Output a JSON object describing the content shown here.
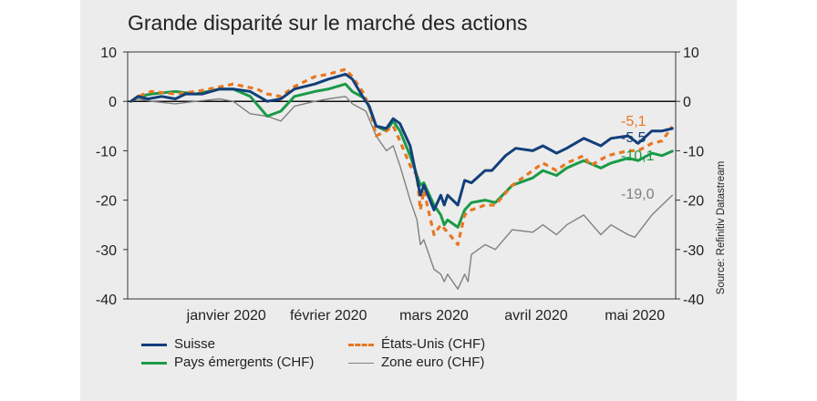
{
  "chart_data": {
    "type": "line",
    "title": "Grande disparité sur le marché des actions",
    "source": "Source: Refinitiv Datastream",
    "ylim": [
      -40,
      10
    ],
    "yticks": [
      10,
      0,
      -10,
      -20,
      -30,
      -40
    ],
    "x_domain": [
      "2019-12-17",
      "2020-05-26"
    ],
    "x_tick_labels": [
      "janvier 2020",
      "février 2020",
      "mars 2020",
      "avril 2020",
      "mai 2020"
    ],
    "x_tick_dates": [
      "2020-01-15",
      "2020-02-14",
      "2020-03-16",
      "2020-04-15",
      "2020-05-14"
    ],
    "series": [
      {
        "name": "Suisse",
        "color": "#123f7a",
        "style": "solid",
        "end_label": "-5,5",
        "points": [
          [
            "2019-12-18",
            0
          ],
          [
            "2019-12-20",
            1
          ],
          [
            "2019-12-23",
            0.5
          ],
          [
            "2019-12-27",
            1
          ],
          [
            "2019-12-31",
            0.5
          ],
          [
            "2020-01-03",
            1.5
          ],
          [
            "2020-01-08",
            1.5
          ],
          [
            "2020-01-13",
            2.5
          ],
          [
            "2020-01-17",
            2.5
          ],
          [
            "2020-01-22",
            2
          ],
          [
            "2020-01-27",
            0
          ],
          [
            "2020-01-31",
            0.5
          ],
          [
            "2020-02-04",
            2.5
          ],
          [
            "2020-02-10",
            3.5
          ],
          [
            "2020-02-14",
            4.5
          ],
          [
            "2020-02-19",
            5.5
          ],
          [
            "2020-02-21",
            4.5
          ],
          [
            "2020-02-24",
            1
          ],
          [
            "2020-02-26",
            -1
          ],
          [
            "2020-02-28",
            -5
          ],
          [
            "2020-03-02",
            -5.5
          ],
          [
            "2020-03-04",
            -3.5
          ],
          [
            "2020-03-06",
            -4.5
          ],
          [
            "2020-03-09",
            -9
          ],
          [
            "2020-03-12",
            -19
          ],
          [
            "2020-03-13",
            -17
          ],
          [
            "2020-03-16",
            -22
          ],
          [
            "2020-03-18",
            -19
          ],
          [
            "2020-03-19",
            -21
          ],
          [
            "2020-03-20",
            -19
          ],
          [
            "2020-03-23",
            -21
          ],
          [
            "2020-03-25",
            -16
          ],
          [
            "2020-03-27",
            -16.5
          ],
          [
            "2020-03-31",
            -14
          ],
          [
            "2020-04-02",
            -14
          ],
          [
            "2020-04-06",
            -11
          ],
          [
            "2020-04-09",
            -9.5
          ],
          [
            "2020-04-14",
            -10
          ],
          [
            "2020-04-17",
            -9
          ],
          [
            "2020-04-21",
            -10.5
          ],
          [
            "2020-04-24",
            -9.5
          ],
          [
            "2020-04-29",
            -7.5
          ],
          [
            "2020-05-04",
            -9
          ],
          [
            "2020-05-07",
            -7.5
          ],
          [
            "2020-05-12",
            -7
          ],
          [
            "2020-05-15",
            -8.5
          ],
          [
            "2020-05-19",
            -6
          ],
          [
            "2020-05-22",
            -6
          ],
          [
            "2020-05-25",
            -5.5
          ]
        ]
      },
      {
        "name": "États-Unis (CHF)",
        "color": "#e87722",
        "style": "dashed",
        "end_label": "-5,1",
        "points": [
          [
            "2019-12-18",
            0
          ],
          [
            "2019-12-20",
            1
          ],
          [
            "2019-12-24",
            2
          ],
          [
            "2019-12-31",
            1.5
          ],
          [
            "2020-01-06",
            2
          ],
          [
            "2020-01-10",
            2.5
          ],
          [
            "2020-01-17",
            3.5
          ],
          [
            "2020-01-24",
            2.5
          ],
          [
            "2020-01-27",
            1.5
          ],
          [
            "2020-01-31",
            1
          ],
          [
            "2020-02-04",
            3
          ],
          [
            "2020-02-10",
            5
          ],
          [
            "2020-02-14",
            5.5
          ],
          [
            "2020-02-19",
            6.5
          ],
          [
            "2020-02-21",
            5
          ],
          [
            "2020-02-24",
            2
          ],
          [
            "2020-02-26",
            -1
          ],
          [
            "2020-02-28",
            -7
          ],
          [
            "2020-03-02",
            -6
          ],
          [
            "2020-03-04",
            -5
          ],
          [
            "2020-03-06",
            -8
          ],
          [
            "2020-03-09",
            -13
          ],
          [
            "2020-03-11",
            -15
          ],
          [
            "2020-03-12",
            -22
          ],
          [
            "2020-03-13",
            -18
          ],
          [
            "2020-03-16",
            -27
          ],
          [
            "2020-03-18",
            -25
          ],
          [
            "2020-03-20",
            -26.5
          ],
          [
            "2020-03-23",
            -29
          ],
          [
            "2020-03-25",
            -23
          ],
          [
            "2020-03-27",
            -22
          ],
          [
            "2020-03-31",
            -21
          ],
          [
            "2020-04-03",
            -21
          ],
          [
            "2020-04-08",
            -17
          ],
          [
            "2020-04-14",
            -14
          ],
          [
            "2020-04-17",
            -12.5
          ],
          [
            "2020-04-21",
            -14
          ],
          [
            "2020-04-24",
            -12.5
          ],
          [
            "2020-04-29",
            -11
          ],
          [
            "2020-05-01",
            -13
          ],
          [
            "2020-05-06",
            -11
          ],
          [
            "2020-05-12",
            -10
          ],
          [
            "2020-05-15",
            -10
          ],
          [
            "2020-05-19",
            -8.5
          ],
          [
            "2020-05-22",
            -8
          ],
          [
            "2020-05-25",
            -5.1
          ]
        ]
      },
      {
        "name": "Pays émergents (CHF)",
        "color": "#1a9a47",
        "style": "solid",
        "end_label": "-10,1",
        "points": [
          [
            "2019-12-18",
            0
          ],
          [
            "2019-12-20",
            1
          ],
          [
            "2019-12-24",
            1.5
          ],
          [
            "2019-12-31",
            2
          ],
          [
            "2020-01-06",
            1.5
          ],
          [
            "2020-01-13",
            2.5
          ],
          [
            "2020-01-17",
            2.5
          ],
          [
            "2020-01-22",
            1
          ],
          [
            "2020-01-27",
            -3
          ],
          [
            "2020-01-31",
            -2
          ],
          [
            "2020-02-04",
            1
          ],
          [
            "2020-02-10",
            2
          ],
          [
            "2020-02-14",
            2.5
          ],
          [
            "2020-02-19",
            3.5
          ],
          [
            "2020-02-21",
            2
          ],
          [
            "2020-02-25",
            0.5
          ],
          [
            "2020-02-28",
            -5
          ],
          [
            "2020-03-02",
            -6
          ],
          [
            "2020-03-04",
            -4
          ],
          [
            "2020-03-06",
            -6
          ],
          [
            "2020-03-09",
            -11
          ],
          [
            "2020-03-12",
            -17
          ],
          [
            "2020-03-13",
            -16.5
          ],
          [
            "2020-03-16",
            -21
          ],
          [
            "2020-03-18",
            -23
          ],
          [
            "2020-03-19",
            -25
          ],
          [
            "2020-03-20",
            -24
          ],
          [
            "2020-03-23",
            -25.5
          ],
          [
            "2020-03-25",
            -22
          ],
          [
            "2020-03-27",
            -20.5
          ],
          [
            "2020-03-31",
            -20
          ],
          [
            "2020-04-03",
            -20.5
          ],
          [
            "2020-04-08",
            -17
          ],
          [
            "2020-04-14",
            -15.5
          ],
          [
            "2020-04-17",
            -14
          ],
          [
            "2020-04-21",
            -15
          ],
          [
            "2020-04-24",
            -13.5
          ],
          [
            "2020-04-29",
            -12
          ],
          [
            "2020-05-04",
            -13.5
          ],
          [
            "2020-05-07",
            -12.5
          ],
          [
            "2020-05-12",
            -11.5
          ],
          [
            "2020-05-15",
            -12
          ],
          [
            "2020-05-19",
            -10.5
          ],
          [
            "2020-05-22",
            -11
          ],
          [
            "2020-05-25",
            -10.1
          ]
        ]
      },
      {
        "name": "Zone euro (CHF)",
        "color": "#808080",
        "style": "solid",
        "end_label": "-19,0",
        "points": [
          [
            "2019-12-18",
            0
          ],
          [
            "2019-12-20",
            0.5
          ],
          [
            "2019-12-24",
            0
          ],
          [
            "2019-12-31",
            -0.5
          ],
          [
            "2020-01-06",
            0
          ],
          [
            "2020-01-13",
            0.5
          ],
          [
            "2020-01-17",
            0
          ],
          [
            "2020-01-22",
            -2.5
          ],
          [
            "2020-01-27",
            -3
          ],
          [
            "2020-01-31",
            -4
          ],
          [
            "2020-02-04",
            -1
          ],
          [
            "2020-02-10",
            0
          ],
          [
            "2020-02-14",
            0.5
          ],
          [
            "2020-02-19",
            1
          ],
          [
            "2020-02-21",
            -0.5
          ],
          [
            "2020-02-25",
            -2
          ],
          [
            "2020-02-28",
            -7
          ],
          [
            "2020-03-02",
            -10
          ],
          [
            "2020-03-04",
            -9
          ],
          [
            "2020-03-06",
            -13
          ],
          [
            "2020-03-09",
            -20
          ],
          [
            "2020-03-11",
            -24
          ],
          [
            "2020-03-12",
            -29
          ],
          [
            "2020-03-13",
            -28
          ],
          [
            "2020-03-16",
            -34
          ],
          [
            "2020-03-18",
            -35
          ],
          [
            "2020-03-19",
            -36.5
          ],
          [
            "2020-03-20",
            -35
          ],
          [
            "2020-03-23",
            -38
          ],
          [
            "2020-03-25",
            -35
          ],
          [
            "2020-03-26",
            -36.5
          ],
          [
            "2020-03-27",
            -31
          ],
          [
            "2020-03-31",
            -29
          ],
          [
            "2020-04-03",
            -30
          ],
          [
            "2020-04-08",
            -26
          ],
          [
            "2020-04-14",
            -26.5
          ],
          [
            "2020-04-17",
            -25
          ],
          [
            "2020-04-21",
            -27
          ],
          [
            "2020-04-24",
            -25
          ],
          [
            "2020-04-29",
            -23
          ],
          [
            "2020-05-04",
            -27
          ],
          [
            "2020-05-07",
            -25
          ],
          [
            "2020-05-12",
            -27
          ],
          [
            "2020-05-14",
            -27.5
          ],
          [
            "2020-05-19",
            -23
          ],
          [
            "2020-05-22",
            -21
          ],
          [
            "2020-05-25",
            -19
          ]
        ]
      }
    ],
    "legend": [
      {
        "label": "Suisse",
        "color": "#123f7a",
        "style": "solid"
      },
      {
        "label": "États-Unis (CHF)",
        "color": "#e87722",
        "style": "dashed"
      },
      {
        "label": "Pays émergents (CHF)",
        "color": "#1a9a47",
        "style": "solid"
      },
      {
        "label": "Zone euro (CHF)",
        "color": "#808080",
        "style": "solid-thin"
      }
    ]
  }
}
